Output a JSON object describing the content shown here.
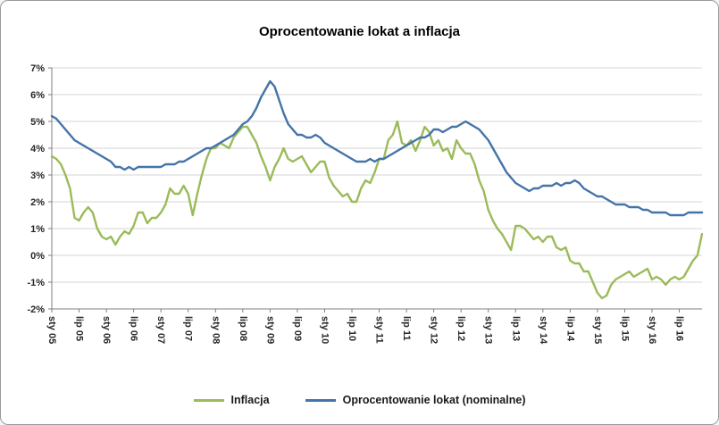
{
  "chart_data": {
    "type": "line",
    "title": "Oprocentowanie lokat a inflacja",
    "xlabel": "",
    "ylabel": "",
    "grid": true,
    "legend_position": "bottom",
    "ylim": [
      -2,
      7
    ],
    "y_ticks": [
      7,
      6,
      5,
      4,
      3,
      2,
      1,
      0,
      -1,
      -2
    ],
    "y_tick_suffix": "%",
    "frequency": "monthly",
    "points_per_tick": 6,
    "x_tick_labels": [
      "sty 05",
      "lip 05",
      "sty 06",
      "lip 06",
      "sty 07",
      "lip 07",
      "sty 08",
      "lip 08",
      "sty 09",
      "lip 09",
      "sty 10",
      "lip 10",
      "sty 11",
      "lip 11",
      "sty 12",
      "lip 12",
      "sty 13",
      "lip 13",
      "sty 14",
      "lip 14",
      "sty 15",
      "lip 15",
      "sty 16",
      "lip 16"
    ],
    "series": [
      {
        "name": "Inflacja",
        "color": "#9bbb59",
        "values": [
          3.7,
          3.6,
          3.4,
          3.0,
          2.5,
          1.4,
          1.3,
          1.6,
          1.8,
          1.6,
          1.0,
          0.7,
          0.6,
          0.7,
          0.4,
          0.7,
          0.9,
          0.8,
          1.1,
          1.6,
          1.6,
          1.2,
          1.4,
          1.4,
          1.6,
          1.9,
          2.5,
          2.3,
          2.3,
          2.6,
          2.3,
          1.5,
          2.3,
          3.0,
          3.6,
          4.0,
          4.0,
          4.2,
          4.1,
          4.0,
          4.4,
          4.6,
          4.8,
          4.8,
          4.5,
          4.2,
          3.7,
          3.3,
          2.8,
          3.3,
          3.6,
          4.0,
          3.6,
          3.5,
          3.6,
          3.7,
          3.4,
          3.1,
          3.3,
          3.5,
          3.5,
          2.9,
          2.6,
          2.4,
          2.2,
          2.3,
          2.0,
          2.0,
          2.5,
          2.8,
          2.7,
          3.1,
          3.6,
          3.6,
          4.3,
          4.5,
          5.0,
          4.2,
          4.1,
          4.3,
          3.9,
          4.3,
          4.8,
          4.6,
          4.1,
          4.3,
          3.9,
          4.0,
          3.6,
          4.3,
          4.0,
          3.8,
          3.8,
          3.4,
          2.8,
          2.4,
          1.7,
          1.3,
          1.0,
          0.8,
          0.5,
          0.2,
          1.1,
          1.1,
          1.0,
          0.8,
          0.6,
          0.7,
          0.5,
          0.7,
          0.7,
          0.3,
          0.2,
          0.3,
          -0.2,
          -0.3,
          -0.3,
          -0.6,
          -0.6,
          -1.0,
          -1.4,
          -1.6,
          -1.5,
          -1.1,
          -0.9,
          -0.8,
          -0.7,
          -0.6,
          -0.8,
          -0.7,
          -0.6,
          -0.5,
          -0.9,
          -0.8,
          -0.9,
          -1.1,
          -0.9,
          -0.8,
          -0.9,
          -0.8,
          -0.5,
          -0.2,
          0.0,
          0.8
        ]
      },
      {
        "name": "Oprocentowanie lokat (nominalne)",
        "color": "#4473a9",
        "values": [
          5.2,
          5.1,
          4.9,
          4.7,
          4.5,
          4.3,
          4.2,
          4.1,
          4.0,
          3.9,
          3.8,
          3.7,
          3.6,
          3.5,
          3.3,
          3.3,
          3.2,
          3.3,
          3.2,
          3.3,
          3.3,
          3.3,
          3.3,
          3.3,
          3.3,
          3.4,
          3.4,
          3.4,
          3.5,
          3.5,
          3.6,
          3.7,
          3.8,
          3.9,
          4.0,
          4.0,
          4.1,
          4.2,
          4.3,
          4.4,
          4.5,
          4.7,
          4.9,
          5.0,
          5.2,
          5.5,
          5.9,
          6.2,
          6.5,
          6.3,
          5.8,
          5.3,
          4.9,
          4.7,
          4.5,
          4.5,
          4.4,
          4.4,
          4.5,
          4.4,
          4.2,
          4.1,
          4.0,
          3.9,
          3.8,
          3.7,
          3.6,
          3.5,
          3.5,
          3.5,
          3.6,
          3.5,
          3.6,
          3.6,
          3.7,
          3.8,
          3.9,
          4.0,
          4.1,
          4.2,
          4.3,
          4.4,
          4.4,
          4.5,
          4.7,
          4.7,
          4.6,
          4.7,
          4.8,
          4.8,
          4.9,
          5.0,
          4.9,
          4.8,
          4.7,
          4.5,
          4.3,
          4.0,
          3.7,
          3.4,
          3.1,
          2.9,
          2.7,
          2.6,
          2.5,
          2.4,
          2.5,
          2.5,
          2.6,
          2.6,
          2.6,
          2.7,
          2.6,
          2.7,
          2.7,
          2.8,
          2.7,
          2.5,
          2.4,
          2.3,
          2.2,
          2.2,
          2.1,
          2.0,
          1.9,
          1.9,
          1.9,
          1.8,
          1.8,
          1.8,
          1.7,
          1.7,
          1.6,
          1.6,
          1.6,
          1.6,
          1.5,
          1.5,
          1.5,
          1.5,
          1.6,
          1.6,
          1.6,
          1.6
        ]
      }
    ]
  },
  "colors": {
    "grid": "#d6d6d6",
    "axis": "#7f7f7f",
    "tick_text": "#262626"
  }
}
